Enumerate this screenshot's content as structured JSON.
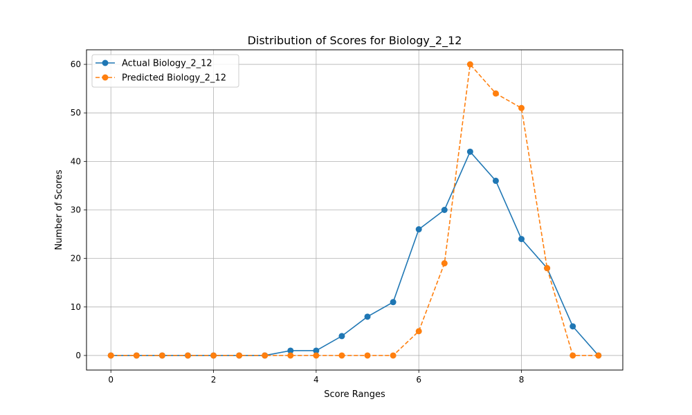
{
  "chart_data": {
    "type": "line",
    "title": "Distribution of Scores for Biology_2_12",
    "xlabel": "Score Ranges",
    "ylabel": "Number of Scores",
    "xlim": [
      -0.475,
      9.975
    ],
    "ylim": [
      -3,
      63
    ],
    "x_ticks": [
      0,
      2,
      4,
      6,
      8
    ],
    "y_ticks": [
      0,
      10,
      20,
      30,
      40,
      50,
      60
    ],
    "grid": true,
    "legend_position": "upper left",
    "x": [
      0,
      0.5,
      1,
      1.5,
      2,
      2.5,
      3,
      3.5,
      4,
      4.5,
      5,
      5.5,
      6,
      6.5,
      7,
      7.5,
      8,
      8.5,
      9,
      9.5
    ],
    "series": [
      {
        "name": "Actual Biology_2_12",
        "color": "#1f77b4",
        "linestyle": "solid",
        "marker": "circle",
        "values": [
          0,
          0,
          0,
          0,
          0,
          0,
          0,
          1,
          1,
          4,
          8,
          11,
          26,
          30,
          42,
          36,
          24,
          18,
          6,
          0
        ]
      },
      {
        "name": "Predicted Biology_2_12",
        "color": "#ff7f0e",
        "linestyle": "dashed",
        "marker": "circle",
        "values": [
          0,
          0,
          0,
          0,
          0,
          0,
          0,
          0,
          0,
          0,
          0,
          0,
          5,
          19,
          60,
          54,
          51,
          18,
          0,
          0
        ]
      }
    ]
  }
}
